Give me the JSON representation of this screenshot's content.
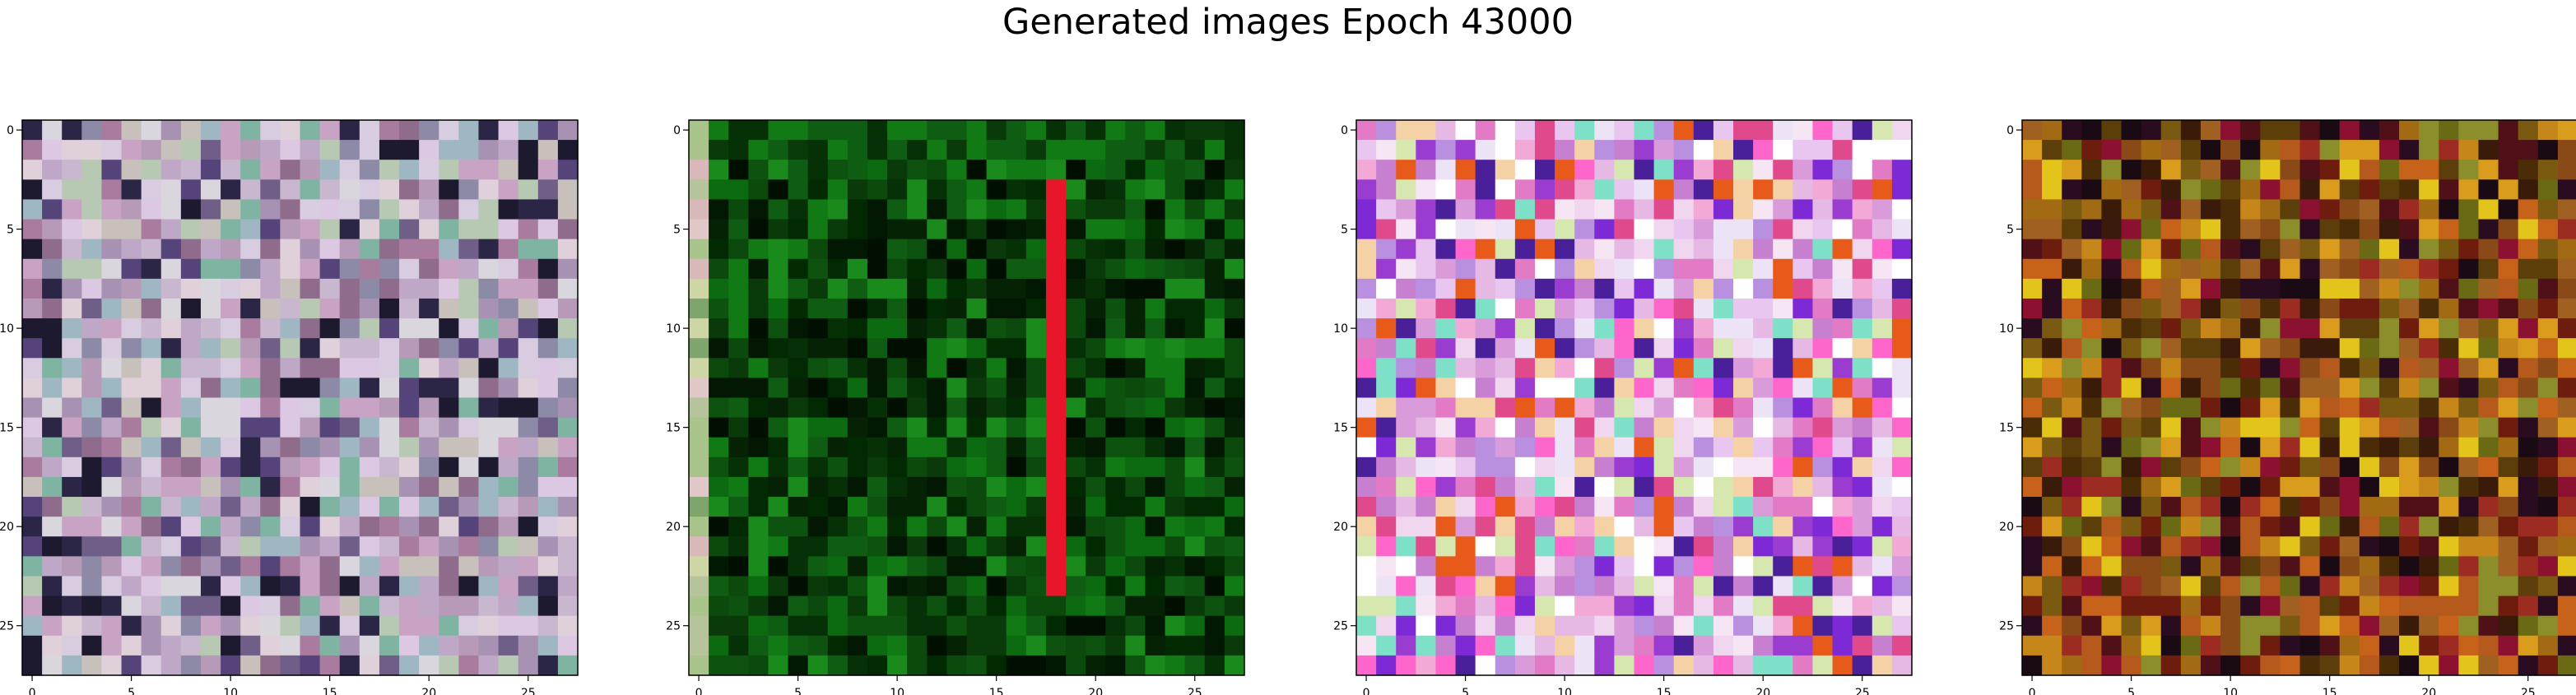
{
  "figure": {
    "title": "Generated images Epoch 43000"
  },
  "chart_data": [
    {
      "type": "heatmap",
      "title": "",
      "xlabel": "",
      "ylabel": "",
      "grid": false,
      "size": [
        28,
        28
      ],
      "x_ticks": [
        0,
        5,
        10,
        15,
        20,
        25
      ],
      "y_ticks": [
        0,
        5,
        10,
        15,
        20,
        25
      ],
      "xlim": [
        -0.5,
        27.5
      ],
      "ylim": [
        27.5,
        -0.5
      ],
      "palette": [
        "#c9b6cf",
        "#d8cde0",
        "#bfa7c8",
        "#a792b3",
        "#d9d6dd",
        "#c7c0bb",
        "#8c8aa6",
        "#b79ab8",
        "#e0d0d9",
        "#9fb7c2",
        "#6f5e88",
        "#54447a",
        "#b7c9b2",
        "#c9a3c4",
        "#2b2546",
        "#7fb4a3",
        "#a97b9e",
        "#dcc8e2",
        "#8f6c8c",
        "#1d1a2f"
      ],
      "dominant_color": "#c7b8cf"
    },
    {
      "type": "heatmap",
      "title": "",
      "xlabel": "",
      "ylabel": "",
      "grid": false,
      "size": [
        28,
        28
      ],
      "x_ticks": [
        0,
        5,
        10,
        15,
        20,
        25
      ],
      "y_ticks": [
        0,
        5,
        10,
        15,
        20,
        25
      ],
      "xlim": [
        -0.5,
        27.5
      ],
      "ylim": [
        27.5,
        -0.5
      ],
      "palette": [
        "#0a3a0a",
        "#0f5d12",
        "#063006",
        "#117a14",
        "#0b4a0c",
        "#022a02",
        "#000f00",
        "#0c6a10",
        "#1a8a1c",
        "#052205",
        "#0d520e",
        "#031803"
      ],
      "stripe_color": "#e8162a",
      "stripe_column": 18,
      "stripe_rows": [
        3,
        23
      ],
      "left_column_colors": [
        "#a8c48a",
        "#cfd6a6",
        "#d8b8b8",
        "#7fa56d",
        "#b6c39b",
        "#e0c8c8"
      ],
      "dominant_color": "#0b4a0c"
    },
    {
      "type": "heatmap",
      "title": "",
      "xlabel": "",
      "ylabel": "",
      "grid": false,
      "size": [
        28,
        28
      ],
      "x_ticks": [
        0,
        5,
        10,
        15,
        20,
        25
      ],
      "y_ticks": [
        0,
        5,
        10,
        15,
        20,
        25
      ],
      "xlim": [
        -0.5,
        27.5
      ],
      "ylim": [
        27.5,
        -0.5
      ],
      "palette": [
        "#f0d6ee",
        "#e6b8e4",
        "#f6e6f4",
        "#d99bd9",
        "#c77fd0",
        "#e8c6f0",
        "#ffffff",
        "#f2a9d6",
        "#b98fe0",
        "#e27ac6",
        "#7d2ad6",
        "#9b3cd1",
        "#d6e8b0",
        "#f5d2a6",
        "#e04a8c",
        "#4a1f9a",
        "#ede3f7",
        "#ff66cc",
        "#7fe0c8",
        "#e85a1a"
      ],
      "dominant_color": "#ecd0ec"
    },
    {
      "type": "heatmap",
      "title": "",
      "xlabel": "",
      "ylabel": "",
      "grid": false,
      "size": [
        28,
        28
      ],
      "x_ticks": [
        0,
        5,
        10,
        15,
        20,
        25
      ],
      "y_ticks": [
        0,
        5,
        10,
        15,
        20,
        25
      ],
      "xlim": [
        -0.5,
        27.5
      ],
      "ylim": [
        27.5,
        -0.5
      ],
      "palette": [
        "#8a4a18",
        "#a36a14",
        "#6e1c0e",
        "#c7861a",
        "#5c3e0a",
        "#9c2c22",
        "#3a1a08",
        "#b55a1c",
        "#7a5a10",
        "#d99c1c",
        "#4a2c06",
        "#8c1030",
        "#2a0c20",
        "#c7621a",
        "#6a6a14",
        "#e3c41a",
        "#1a0a14",
        "#a06022",
        "#8b8e2a",
        "#501018"
      ],
      "dominant_color": "#8a4a18"
    }
  ]
}
